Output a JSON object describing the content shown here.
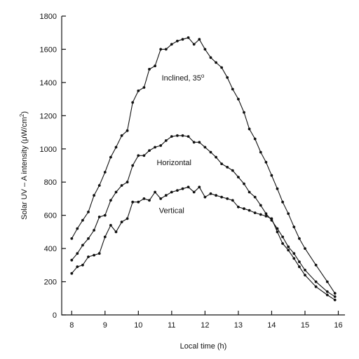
{
  "chart_data": {
    "type": "line",
    "xlabel": "Local time (h)",
    "ylabel_main": "Solar UV – A intensity (μW/cm",
    "ylabel_sup": "2",
    "ylabel_tail": ")",
    "xlim": [
      7.7,
      16.2
    ],
    "ylim": [
      0,
      1800
    ],
    "xticks": [
      8,
      9,
      10,
      11,
      12,
      13,
      14,
      15,
      16
    ],
    "yticks": [
      0,
      200,
      400,
      600,
      800,
      1000,
      1200,
      1400,
      1600,
      1800
    ],
    "grid": false,
    "series": [
      {
        "name_main": "Inclined, 35",
        "name_sup": "o",
        "x": [
          8.0,
          8.17,
          8.33,
          8.5,
          8.67,
          8.83,
          9.0,
          9.17,
          9.33,
          9.5,
          9.67,
          9.83,
          10.0,
          10.17,
          10.33,
          10.5,
          10.67,
          10.83,
          11.0,
          11.17,
          11.33,
          11.5,
          11.67,
          11.83,
          12.0,
          12.17,
          12.33,
          12.5,
          12.67,
          12.83,
          13.0,
          13.17,
          13.33,
          13.5,
          13.67,
          13.83,
          14.0,
          14.17,
          14.33,
          14.5,
          14.67,
          14.83,
          15.0,
          15.33,
          15.67,
          15.9
        ],
        "y": [
          460,
          520,
          570,
          620,
          720,
          780,
          860,
          950,
          1010,
          1080,
          1110,
          1280,
          1350,
          1370,
          1480,
          1500,
          1600,
          1600,
          1630,
          1650,
          1660,
          1670,
          1630,
          1660,
          1600,
          1550,
          1520,
          1490,
          1430,
          1360,
          1300,
          1220,
          1120,
          1060,
          980,
          920,
          840,
          760,
          680,
          610,
          530,
          460,
          400,
          300,
          200,
          130
        ]
      },
      {
        "name_main": "Horizontal",
        "x": [
          8.0,
          8.17,
          8.33,
          8.5,
          8.67,
          8.83,
          9.0,
          9.17,
          9.33,
          9.5,
          9.67,
          9.83,
          10.0,
          10.17,
          10.33,
          10.5,
          10.67,
          10.83,
          11.0,
          11.17,
          11.33,
          11.5,
          11.67,
          11.83,
          12.0,
          12.17,
          12.33,
          12.5,
          12.67,
          12.83,
          13.0,
          13.17,
          13.33,
          13.5,
          13.67,
          13.83,
          14.0,
          14.17,
          14.33,
          14.5,
          14.67,
          14.83,
          15.0,
          15.33,
          15.67,
          15.9
        ],
        "y": [
          330,
          370,
          420,
          460,
          510,
          590,
          600,
          690,
          740,
          780,
          800,
          900,
          960,
          960,
          990,
          1010,
          1020,
          1050,
          1075,
          1080,
          1080,
          1075,
          1040,
          1040,
          1010,
          980,
          950,
          910,
          890,
          870,
          830,
          790,
          740,
          710,
          660,
          610,
          570,
          520,
          470,
          410,
          370,
          320,
          270,
          200,
          140,
          110
        ]
      },
      {
        "name_main": "Vertical",
        "x": [
          8.0,
          8.17,
          8.33,
          8.5,
          8.67,
          8.83,
          9.0,
          9.17,
          9.33,
          9.5,
          9.67,
          9.83,
          10.0,
          10.17,
          10.33,
          10.5,
          10.67,
          10.83,
          11.0,
          11.17,
          11.33,
          11.5,
          11.67,
          11.83,
          12.0,
          12.17,
          12.33,
          12.5,
          12.67,
          12.83,
          13.0,
          13.17,
          13.33,
          13.5,
          13.67,
          13.83,
          14.0,
          14.17,
          14.33,
          14.5,
          14.67,
          14.83,
          15.0,
          15.33,
          15.67,
          15.9
        ],
        "y": [
          250,
          290,
          300,
          350,
          360,
          370,
          470,
          540,
          500,
          560,
          580,
          680,
          680,
          700,
          690,
          740,
          700,
          720,
          740,
          750,
          760,
          770,
          740,
          770,
          710,
          730,
          720,
          710,
          700,
          690,
          650,
          640,
          630,
          615,
          605,
          595,
          580,
          500,
          430,
          390,
          340,
          290,
          240,
          170,
          120,
          90
        ]
      }
    ]
  }
}
